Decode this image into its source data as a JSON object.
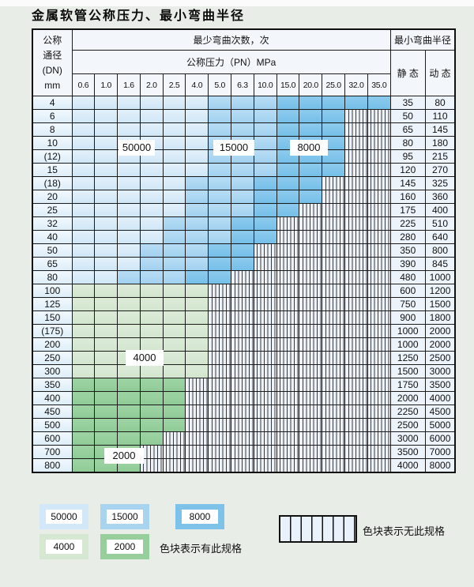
{
  "title": "金属软管公称压力、最小弯曲半径",
  "table": {
    "dn_header": [
      "公称",
      "通径",
      "(DN)",
      "mm"
    ],
    "cycles_header": "最少弯曲次数，次",
    "pressure_header": "公称压力（PN）MPa",
    "radius_header": "最小弯曲半径",
    "static_header": "静 态",
    "dynamic_header": "动 态",
    "pressures": [
      "0.6",
      "1.0",
      "1.6",
      "2.0",
      "2.5",
      "4.0",
      "5.0",
      "6.3",
      "10.0",
      "15.0",
      "20.0",
      "25.0",
      "32.0",
      "35.0"
    ],
    "rows": [
      {
        "dn": "4",
        "zones": [
          [
            "50000",
            6
          ],
          [
            "15000",
            3
          ],
          [
            "8000",
            5
          ]
        ],
        "static": "35",
        "dynamic": "80"
      },
      {
        "dn": "6",
        "zones": [
          [
            "50000",
            6
          ],
          [
            "15000",
            3
          ],
          [
            "8000",
            3
          ]
        ],
        "static": "50",
        "dynamic": "110"
      },
      {
        "dn": "8",
        "zones": [
          [
            "50000",
            6
          ],
          [
            "15000",
            3
          ],
          [
            "8000",
            3
          ]
        ],
        "static": "65",
        "dynamic": "145"
      },
      {
        "dn": "10",
        "zones": [
          [
            "50000",
            6
          ],
          [
            "15000",
            3
          ],
          [
            "8000",
            3
          ]
        ],
        "static": "80",
        "dynamic": "180"
      },
      {
        "dn": "(12)",
        "zones": [
          [
            "50000",
            6
          ],
          [
            "15000",
            3
          ],
          [
            "8000",
            3
          ]
        ],
        "static": "95",
        "dynamic": "215"
      },
      {
        "dn": "15",
        "zones": [
          [
            "50000",
            6
          ],
          [
            "15000",
            3
          ],
          [
            "8000",
            3
          ]
        ],
        "static": "120",
        "dynamic": "270"
      },
      {
        "dn": "(18)",
        "zones": [
          [
            "50000",
            5
          ],
          [
            "15000",
            3
          ],
          [
            "8000",
            3
          ]
        ],
        "static": "145",
        "dynamic": "325"
      },
      {
        "dn": "20",
        "zones": [
          [
            "50000",
            5
          ],
          [
            "15000",
            3
          ],
          [
            "8000",
            3
          ]
        ],
        "static": "160",
        "dynamic": "360"
      },
      {
        "dn": "25",
        "zones": [
          [
            "50000",
            5
          ],
          [
            "15000",
            3
          ],
          [
            "8000",
            2
          ]
        ],
        "static": "175",
        "dynamic": "400"
      },
      {
        "dn": "32",
        "zones": [
          [
            "50000",
            4
          ],
          [
            "15000",
            3
          ],
          [
            "8000",
            2
          ]
        ],
        "static": "225",
        "dynamic": "510"
      },
      {
        "dn": "40",
        "zones": [
          [
            "50000",
            4
          ],
          [
            "15000",
            3
          ],
          [
            "8000",
            2
          ]
        ],
        "static": "280",
        "dynamic": "640"
      },
      {
        "dn": "50",
        "zones": [
          [
            "50000",
            3
          ],
          [
            "15000",
            3
          ],
          [
            "8000",
            2
          ]
        ],
        "static": "350",
        "dynamic": "800"
      },
      {
        "dn": "65",
        "zones": [
          [
            "50000",
            3
          ],
          [
            "15000",
            3
          ],
          [
            "8000",
            2
          ]
        ],
        "static": "390",
        "dynamic": "845"
      },
      {
        "dn": "80",
        "zones": [
          [
            "50000",
            2
          ],
          [
            "15000",
            3
          ],
          [
            "8000",
            2
          ]
        ],
        "static": "480",
        "dynamic": "1000"
      },
      {
        "dn": "100",
        "zones": [
          [
            "4000",
            6
          ]
        ],
        "static": "600",
        "dynamic": "1200"
      },
      {
        "dn": "125",
        "zones": [
          [
            "4000",
            6
          ]
        ],
        "static": "750",
        "dynamic": "1500"
      },
      {
        "dn": "150",
        "zones": [
          [
            "4000",
            6
          ]
        ],
        "static": "900",
        "dynamic": "1800"
      },
      {
        "dn": "(175)",
        "zones": [
          [
            "4000",
            6
          ]
        ],
        "static": "1000",
        "dynamic": "2000"
      },
      {
        "dn": "200",
        "zones": [
          [
            "4000",
            6
          ]
        ],
        "static": "1000",
        "dynamic": "2000"
      },
      {
        "dn": "250",
        "zones": [
          [
            "4000",
            6
          ]
        ],
        "static": "1250",
        "dynamic": "2500"
      },
      {
        "dn": "300",
        "zones": [
          [
            "4000",
            6
          ]
        ],
        "static": "1500",
        "dynamic": "3000"
      },
      {
        "dn": "350",
        "zones": [
          [
            "2000",
            5
          ]
        ],
        "static": "1750",
        "dynamic": "3500"
      },
      {
        "dn": "400",
        "zones": [
          [
            "2000",
            5
          ]
        ],
        "static": "2000",
        "dynamic": "4000"
      },
      {
        "dn": "450",
        "zones": [
          [
            "2000",
            5
          ]
        ],
        "static": "2250",
        "dynamic": "4500"
      },
      {
        "dn": "500",
        "zones": [
          [
            "2000",
            5
          ]
        ],
        "static": "2500",
        "dynamic": "5000"
      },
      {
        "dn": "600",
        "zones": [
          [
            "2000",
            4
          ]
        ],
        "static": "3000",
        "dynamic": "6000"
      },
      {
        "dn": "700",
        "zones": [
          [
            "2000",
            3
          ]
        ],
        "static": "3500",
        "dynamic": "7000"
      },
      {
        "dn": "800",
        "zones": [
          [
            "2000",
            3
          ]
        ],
        "static": "4000",
        "dynamic": "8000"
      }
    ]
  },
  "overlay_labels": [
    {
      "id": "50000",
      "text": "50000"
    },
    {
      "id": "15000",
      "text": "15000"
    },
    {
      "id": "8000",
      "text": "8000"
    },
    {
      "id": "4000",
      "text": "4000"
    },
    {
      "id": "2000",
      "text": "2000"
    }
  ],
  "legend": {
    "zones": [
      {
        "value": "50000",
        "color": "#d2e8f8"
      },
      {
        "value": "15000",
        "color": "#a8d4f0"
      },
      {
        "value": "8000",
        "color": "#7ec2e9"
      },
      {
        "value": "4000",
        "color": "#d6e8d2"
      },
      {
        "value": "2000",
        "color": "#96cf9c"
      }
    ],
    "has_spec_text": "色块表示有此规格",
    "no_spec_text": "色块表示无此规格"
  },
  "colors": {
    "page_bg": "#e9ede8",
    "grid_border": "#1c1c1c",
    "no_spec_bg": "#edf2f9",
    "zone_50000": "#d2e8f8",
    "zone_15000": "#a8d4f0",
    "zone_8000": "#7ec2e9",
    "zone_4000": "#d6e8d2",
    "zone_2000": "#96cf9c"
  }
}
